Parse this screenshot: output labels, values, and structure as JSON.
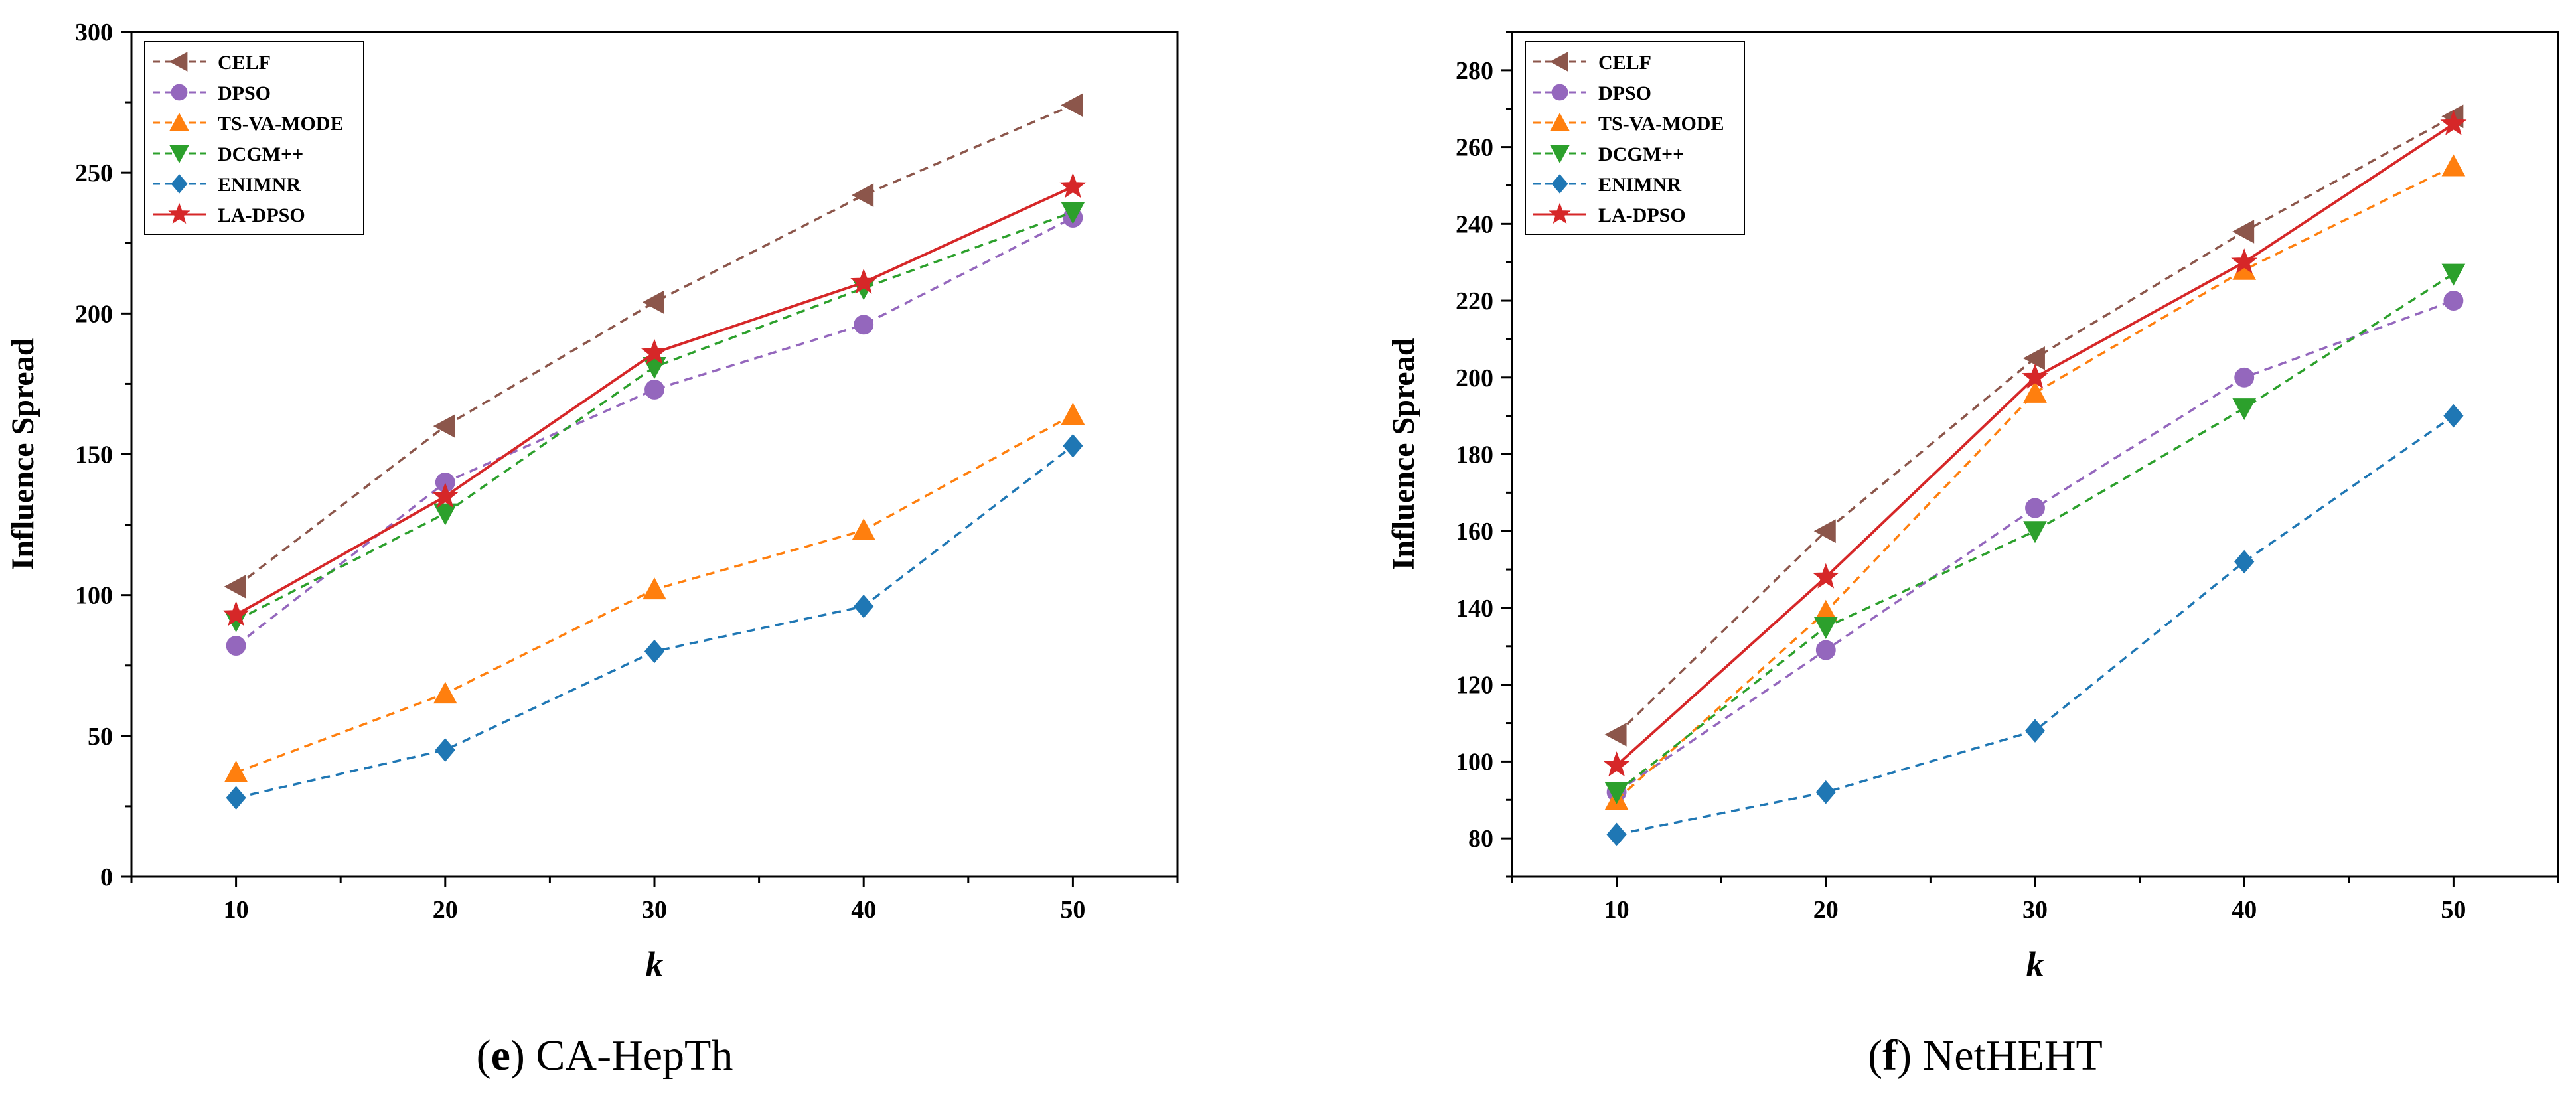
{
  "chart_data": [
    {
      "type": "line",
      "caption_letter": "e",
      "caption_text": "CA-HepTh",
      "xlabel": "k",
      "ylabel": "Influence Spread",
      "x": [
        10,
        20,
        30,
        40,
        50
      ],
      "xlim": [
        5,
        55
      ],
      "ylim": [
        0,
        300
      ],
      "yticks": [
        0,
        50,
        100,
        150,
        200,
        250,
        300
      ],
      "legend_position": "top-left",
      "series": [
        {
          "name": "CELF",
          "values": [
            103,
            160,
            204,
            242,
            274
          ],
          "color": "#8c564b",
          "dash": true,
          "marker": "triangle-left"
        },
        {
          "name": "DPSO",
          "values": [
            82,
            140,
            173,
            196,
            234
          ],
          "color": "#9467bd",
          "dash": true,
          "marker": "circle"
        },
        {
          "name": "TS-VA-MODE",
          "values": [
            37,
            65,
            102,
            123,
            164
          ],
          "color": "#ff7f0e",
          "dash": true,
          "marker": "triangle-up"
        },
        {
          "name": "DCGM++",
          "values": [
            91,
            129,
            181,
            209,
            236
          ],
          "color": "#2ca02c",
          "dash": true,
          "marker": "triangle-down"
        },
        {
          "name": "ENIMNR",
          "values": [
            28,
            45,
            80,
            96,
            153
          ],
          "color": "#1f77b4",
          "dash": true,
          "marker": "diamond"
        },
        {
          "name": "LA-DPSO",
          "values": [
            93,
            135,
            186,
            211,
            245
          ],
          "color": "#d62728",
          "dash": false,
          "marker": "star"
        }
      ]
    },
    {
      "type": "line",
      "caption_letter": "f",
      "caption_text": "NetHEHT",
      "xlabel": "k",
      "ylabel": "Influence Spread",
      "x": [
        10,
        20,
        30,
        40,
        50
      ],
      "xlim": [
        5,
        55
      ],
      "ylim": [
        70,
        290
      ],
      "yticks": [
        80,
        100,
        120,
        140,
        160,
        180,
        200,
        220,
        240,
        260,
        280
      ],
      "legend_position": "top-left",
      "series": [
        {
          "name": "CELF",
          "values": [
            107,
            160,
            205,
            238,
            268
          ],
          "color": "#8c564b",
          "dash": true,
          "marker": "triangle-left"
        },
        {
          "name": "DPSO",
          "values": [
            92,
            129,
            166,
            200,
            220
          ],
          "color": "#9467bd",
          "dash": true,
          "marker": "circle"
        },
        {
          "name": "TS-VA-MODE",
          "values": [
            90,
            139,
            196,
            228,
            255
          ],
          "color": "#ff7f0e",
          "dash": true,
          "marker": "triangle-up"
        },
        {
          "name": "DCGM++",
          "values": [
            92,
            135,
            160,
            192,
            227
          ],
          "color": "#2ca02c",
          "dash": true,
          "marker": "triangle-down"
        },
        {
          "name": "ENIMNR",
          "values": [
            81,
            92,
            108,
            152,
            190
          ],
          "color": "#1f77b4",
          "dash": true,
          "marker": "diamond"
        },
        {
          "name": "LA-DPSO",
          "values": [
            99,
            148,
            200,
            230,
            266
          ],
          "color": "#d62728",
          "dash": false,
          "marker": "star"
        }
      ]
    }
  ]
}
